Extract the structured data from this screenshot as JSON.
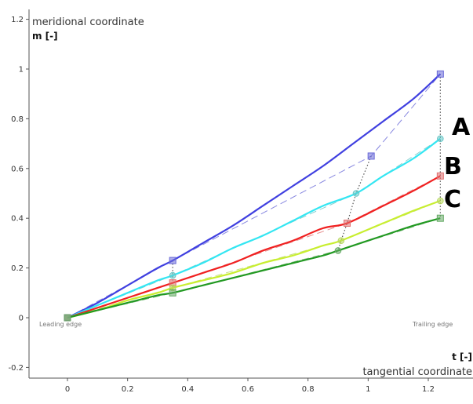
{
  "chart_data": {
    "type": "line",
    "ylabel": "meridional coordinate",
    "ylabel_unit": "m [-]",
    "xlabel": "tangential coordinate",
    "xlabel_unit": "t [-]",
    "xlim": [
      -0.15,
      1.3
    ],
    "ylim": [
      -0.22,
      1.22
    ],
    "xticks": [
      0,
      0.2,
      0.4,
      0.6,
      0.8,
      1,
      1.2
    ],
    "yticks": [
      -0.2,
      0,
      0.2,
      0.4,
      0.6,
      0.8,
      1,
      1.2
    ],
    "grid": false,
    "annotations": {
      "leading_edge": "Leading edge",
      "trailing_edge": "Trailing edge",
      "letters": [
        "A",
        "B",
        "C"
      ]
    },
    "series": [
      {
        "color": "#4040e0",
        "marker_color": "#6a6ad8",
        "curve_x": [
          0,
          0.1,
          0.2,
          0.3,
          0.35,
          0.45,
          0.55,
          0.65,
          0.75,
          0.85,
          0.95,
          1.05,
          1.15,
          1.24
        ],
        "curve_y": [
          0,
          0.06,
          0.13,
          0.2,
          0.23,
          0.3,
          0.37,
          0.45,
          0.53,
          0.61,
          0.7,
          0.79,
          0.88,
          0.98
        ],
        "control_x": [
          0,
          0.35,
          1.01,
          1.24
        ],
        "control_y": [
          0,
          0.23,
          0.65,
          0.98
        ]
      },
      {
        "color": "#33e6f2",
        "marker_color": "#66c6c6",
        "curve_x": [
          0,
          0.1,
          0.2,
          0.3,
          0.35,
          0.45,
          0.55,
          0.65,
          0.75,
          0.85,
          0.96,
          1.05,
          1.15,
          1.24
        ],
        "curve_y": [
          0,
          0.05,
          0.1,
          0.15,
          0.17,
          0.22,
          0.28,
          0.33,
          0.39,
          0.45,
          0.5,
          0.57,
          0.64,
          0.72
        ],
        "control_x": [
          0,
          0.35,
          0.96,
          1.24
        ],
        "control_y": [
          0,
          0.17,
          0.5,
          0.72
        ]
      },
      {
        "color": "#f02020",
        "marker_color": "#e07070",
        "curve_x": [
          0,
          0.1,
          0.2,
          0.3,
          0.35,
          0.45,
          0.55,
          0.65,
          0.75,
          0.85,
          0.93,
          1.05,
          1.15,
          1.24
        ],
        "curve_y": [
          0,
          0.04,
          0.08,
          0.12,
          0.14,
          0.18,
          0.22,
          0.27,
          0.31,
          0.36,
          0.38,
          0.45,
          0.51,
          0.57
        ],
        "control_x": [
          0,
          0.35,
          0.93,
          1.24
        ],
        "control_y": [
          0,
          0.14,
          0.38,
          0.57
        ]
      },
      {
        "color": "#c8ee30",
        "marker_color": "#b8d860",
        "curve_x": [
          0,
          0.1,
          0.2,
          0.3,
          0.35,
          0.45,
          0.55,
          0.65,
          0.75,
          0.85,
          0.91,
          1.05,
          1.15,
          1.24
        ],
        "curve_y": [
          0,
          0.03,
          0.07,
          0.1,
          0.12,
          0.15,
          0.18,
          0.22,
          0.25,
          0.29,
          0.31,
          0.38,
          0.43,
          0.47
        ],
        "control_x": [
          0,
          0.35,
          0.91,
          1.24
        ],
        "control_y": [
          0,
          0.12,
          0.31,
          0.47
        ]
      },
      {
        "color": "#229922",
        "marker_color": "#66aa66",
        "curve_x": [
          0,
          0.1,
          0.2,
          0.3,
          0.35,
          0.45,
          0.55,
          0.65,
          0.75,
          0.85,
          0.9,
          1.05,
          1.15,
          1.24
        ],
        "curve_y": [
          0,
          0.03,
          0.06,
          0.09,
          0.1,
          0.13,
          0.16,
          0.19,
          0.22,
          0.25,
          0.27,
          0.33,
          0.37,
          0.4
        ],
        "control_x": [
          0,
          0.35,
          0.9,
          1.24
        ],
        "control_y": [
          0,
          0.1,
          0.27,
          0.4
        ]
      }
    ]
  }
}
